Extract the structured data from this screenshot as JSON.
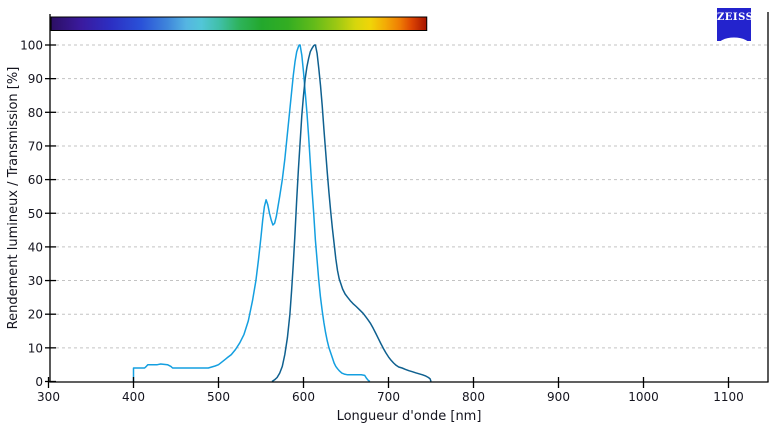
{
  "window": {
    "background": "#ffffff"
  },
  "logo": {
    "text": "ZEISS",
    "bg_color": "#2323cd",
    "text_color": "#ffffff"
  },
  "chart_data": {
    "type": "line",
    "title": "",
    "xlabel": "Longueur d'onde [nm]",
    "ylabel": "Rendement lumineux / Transmission [%]",
    "xlim": [
      300,
      1150
    ],
    "ylim": [
      0,
      100
    ],
    "x_ticks": [
      300,
      400,
      500,
      600,
      700,
      800,
      900,
      1000,
      1100
    ],
    "y_ticks": [
      0,
      10,
      20,
      30,
      40,
      50,
      60,
      70,
      80,
      90,
      100
    ],
    "grid": "horizontal-dashed",
    "grid_color": "#c3c3c3",
    "axis_color": "#000000",
    "text_color": "#14141e",
    "legend": "none",
    "series": [
      {
        "name": "excitation-curve-light-blue",
        "color": "#149fe0",
        "peak_nm": 595,
        "points": [
          [
            400,
            0
          ],
          [
            400,
            4
          ],
          [
            402,
            4
          ],
          [
            413,
            4
          ],
          [
            415,
            4.5
          ],
          [
            417,
            5
          ],
          [
            428,
            5
          ],
          [
            432,
            5.2
          ],
          [
            440,
            5
          ],
          [
            444,
            4.5
          ],
          [
            446,
            4
          ],
          [
            470,
            4
          ],
          [
            488,
            4
          ],
          [
            492,
            4.3
          ],
          [
            496,
            4.6
          ],
          [
            500,
            5
          ],
          [
            505,
            6
          ],
          [
            510,
            7
          ],
          [
            515,
            8
          ],
          [
            520,
            9.5
          ],
          [
            525,
            11.5
          ],
          [
            530,
            14
          ],
          [
            535,
            18
          ],
          [
            540,
            24
          ],
          [
            544,
            30
          ],
          [
            547,
            36
          ],
          [
            550,
            43
          ],
          [
            552,
            48
          ],
          [
            554,
            52
          ],
          [
            556,
            54
          ],
          [
            558,
            52.5
          ],
          [
            560,
            50
          ],
          [
            562,
            48
          ],
          [
            564,
            46.5
          ],
          [
            566,
            47
          ],
          [
            568,
            49
          ],
          [
            570,
            52
          ],
          [
            572,
            55
          ],
          [
            575,
            60
          ],
          [
            578,
            66
          ],
          [
            580,
            71
          ],
          [
            582,
            76
          ],
          [
            584,
            81
          ],
          [
            586,
            86
          ],
          [
            588,
            91
          ],
          [
            590,
            95
          ],
          [
            592,
            98
          ],
          [
            594,
            99.5
          ],
          [
            595,
            100
          ],
          [
            596,
            100
          ],
          [
            598,
            97
          ],
          [
            600,
            92
          ],
          [
            602,
            86
          ],
          [
            604,
            80
          ],
          [
            606,
            73
          ],
          [
            608,
            65
          ],
          [
            610,
            57
          ],
          [
            612,
            50
          ],
          [
            614,
            42
          ],
          [
            616,
            36
          ],
          [
            618,
            30
          ],
          [
            620,
            25
          ],
          [
            622,
            21
          ],
          [
            624,
            17.5
          ],
          [
            626,
            14.5
          ],
          [
            628,
            12
          ],
          [
            630,
            10
          ],
          [
            632,
            8.5
          ],
          [
            634,
            7
          ],
          [
            636,
            5.5
          ],
          [
            638,
            4.5
          ],
          [
            640,
            3.8
          ],
          [
            642,
            3.2
          ],
          [
            645,
            2.5
          ],
          [
            648,
            2.2
          ],
          [
            652,
            2
          ],
          [
            660,
            2
          ],
          [
            668,
            2
          ],
          [
            672,
            1.8
          ],
          [
            674,
            1
          ],
          [
            676,
            0.4
          ],
          [
            678,
            0
          ]
        ]
      },
      {
        "name": "emission-curve-dark-blue",
        "color": "#0f608f",
        "peak_nm": 613,
        "points": [
          [
            563,
            0
          ],
          [
            566,
            0.5
          ],
          [
            569,
            1.2
          ],
          [
            572,
            2.5
          ],
          [
            575,
            4.5
          ],
          [
            578,
            8
          ],
          [
            581,
            13
          ],
          [
            584,
            20
          ],
          [
            586,
            27
          ],
          [
            588,
            35
          ],
          [
            590,
            44
          ],
          [
            592,
            54
          ],
          [
            594,
            63
          ],
          [
            596,
            71
          ],
          [
            598,
            79
          ],
          [
            600,
            85
          ],
          [
            602,
            90
          ],
          [
            604,
            93.5
          ],
          [
            606,
            96
          ],
          [
            608,
            98
          ],
          [
            610,
            99
          ],
          [
            612,
            99.8
          ],
          [
            613,
            100
          ],
          [
            614,
            100
          ],
          [
            616,
            97.5
          ],
          [
            618,
            93
          ],
          [
            620,
            88
          ],
          [
            622,
            82
          ],
          [
            624,
            75
          ],
          [
            626,
            68.5
          ],
          [
            628,
            62
          ],
          [
            630,
            56
          ],
          [
            632,
            50.5
          ],
          [
            634,
            45.5
          ],
          [
            636,
            41
          ],
          [
            638,
            36.5
          ],
          [
            640,
            33
          ],
          [
            642,
            30.5
          ],
          [
            644,
            29
          ],
          [
            646,
            27.5
          ],
          [
            649,
            26
          ],
          [
            652,
            25
          ],
          [
            655,
            24
          ],
          [
            658,
            23.2
          ],
          [
            662,
            22.3
          ],
          [
            666,
            21.3
          ],
          [
            670,
            20.3
          ],
          [
            673,
            19.3
          ],
          [
            676,
            18.3
          ],
          [
            679,
            17.2
          ],
          [
            682,
            15.8
          ],
          [
            685,
            14.3
          ],
          [
            688,
            12.8
          ],
          [
            691,
            11.3
          ],
          [
            694,
            9.8
          ],
          [
            697,
            8.5
          ],
          [
            700,
            7.3
          ],
          [
            703,
            6.3
          ],
          [
            706,
            5.5
          ],
          [
            709,
            4.8
          ],
          [
            712,
            4.3
          ],
          [
            716,
            4
          ],
          [
            720,
            3.6
          ],
          [
            724,
            3.2
          ],
          [
            728,
            2.9
          ],
          [
            732,
            2.6
          ],
          [
            736,
            2.3
          ],
          [
            740,
            2
          ],
          [
            744,
            1.6
          ],
          [
            747,
            1.2
          ],
          [
            749,
            0.8
          ],
          [
            750,
            0
          ]
        ]
      }
    ],
    "spectrum_bar": {
      "start_nm": 303,
      "end_nm": 745,
      "border_color": "#000000",
      "gradient": [
        {
          "offset": 0,
          "color": "#2c0f63"
        },
        {
          "offset": 0.08,
          "color": "#3a1a9e"
        },
        {
          "offset": 0.16,
          "color": "#2c2fc3"
        },
        {
          "offset": 0.24,
          "color": "#2a52d8"
        },
        {
          "offset": 0.31,
          "color": "#3f86db"
        },
        {
          "offset": 0.36,
          "color": "#55b5e2"
        },
        {
          "offset": 0.4,
          "color": "#52c6d8"
        },
        {
          "offset": 0.45,
          "color": "#3fbfa5"
        },
        {
          "offset": 0.5,
          "color": "#2eb35c"
        },
        {
          "offset": 0.56,
          "color": "#23a82d"
        },
        {
          "offset": 0.63,
          "color": "#33ad22"
        },
        {
          "offset": 0.7,
          "color": "#63bb1a"
        },
        {
          "offset": 0.76,
          "color": "#9cc813"
        },
        {
          "offset": 0.81,
          "color": "#d6d60d"
        },
        {
          "offset": 0.85,
          "color": "#f0d508"
        },
        {
          "offset": 0.89,
          "color": "#f3ab06"
        },
        {
          "offset": 0.93,
          "color": "#ee7a04"
        },
        {
          "offset": 0.96,
          "color": "#dd4502"
        },
        {
          "offset": 1,
          "color": "#a51300"
        }
      ]
    }
  }
}
